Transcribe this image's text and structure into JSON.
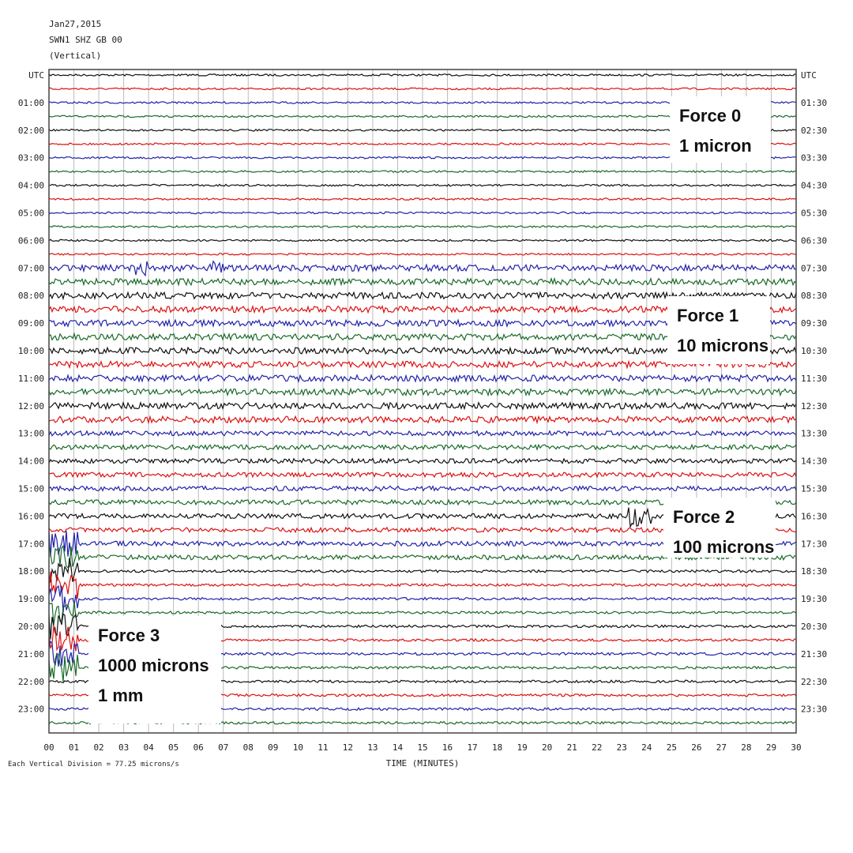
{
  "header": {
    "date": "Jan27,2015",
    "station": "SWN1 SHZ GB 00",
    "component": "(Vertical)"
  },
  "left_labels": [
    "UTC",
    "01:00",
    "02:00",
    "03:00",
    "04:00",
    "05:00",
    "06:00",
    "07:00",
    "08:00",
    "09:00",
    "10:00",
    "11:00",
    "12:00",
    "13:00",
    "14:00",
    "15:00",
    "16:00",
    "17:00",
    "18:00",
    "19:00",
    "20:00",
    "21:00",
    "22:00",
    "23:00"
  ],
  "right_labels": [
    "UTC",
    "01:30",
    "02:30",
    "03:30",
    "04:30",
    "05:30",
    "06:30",
    "07:30",
    "08:30",
    "09:30",
    "10:30",
    "11:30",
    "12:30",
    "13:30",
    "14:30",
    "15:30",
    "16:30",
    "17:30",
    "18:30",
    "19:30",
    "20:30",
    "21:30",
    "22:30",
    "23:30"
  ],
  "x_ticks": [
    "00",
    "01",
    "02",
    "03",
    "04",
    "05",
    "06",
    "07",
    "08",
    "09",
    "10",
    "11",
    "12",
    "13",
    "14",
    "15",
    "16",
    "17",
    "18",
    "19",
    "20",
    "21",
    "22",
    "23",
    "24",
    "25",
    "26",
    "27",
    "28",
    "29",
    "30"
  ],
  "x_axis_title": "TIME (MINUTES)",
  "footer": "Each Vertical Division = 77.25 microns/s",
  "annotations": [
    {
      "lines": [
        "Force 0",
        "1 micron"
      ]
    },
    {
      "lines": [
        "Force 1",
        "10 microns"
      ]
    },
    {
      "lines": [
        "Force 2",
        "100 microns"
      ]
    },
    {
      "lines": [
        "Force 3",
        "1000 microns",
        "1 mm"
      ]
    }
  ]
}
